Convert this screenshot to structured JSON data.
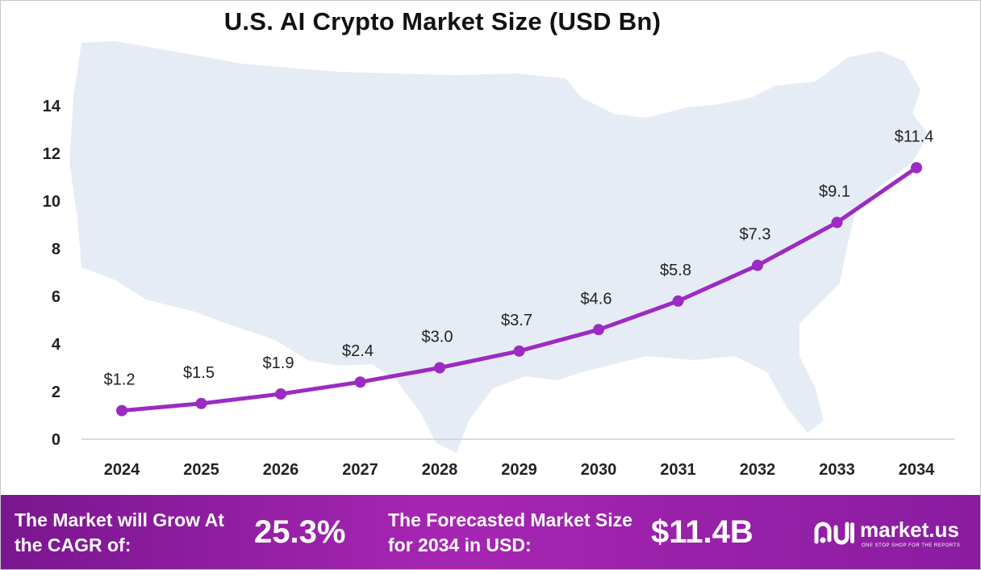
{
  "chart_data": {
    "type": "line",
    "title": "U.S. AI Crypto Market Size (USD Bn)",
    "categories": [
      "2024",
      "2025",
      "2026",
      "2027",
      "2028",
      "2029",
      "2030",
      "2031",
      "2032",
      "2033",
      "2034"
    ],
    "values": [
      1.2,
      1.5,
      1.9,
      2.4,
      3.0,
      3.7,
      4.6,
      5.8,
      7.3,
      9.1,
      11.4
    ],
    "data_labels": [
      "$1.2",
      "$1.5",
      "$1.9",
      "$2.4",
      "$3.0",
      "$3.7",
      "$4.6",
      "$5.8",
      "$7.3",
      "$9.1",
      "$11.4"
    ],
    "y_ticks": [
      "0",
      "2",
      "4",
      "6",
      "8",
      "10",
      "12",
      "14"
    ],
    "ylim": [
      0,
      14
    ],
    "xlabel": "",
    "ylabel": "",
    "grid": false,
    "line_color": "#9b2bc2",
    "background_shape": "us-map"
  },
  "footer": {
    "cagr_label": "The Market will Grow At the CAGR of:",
    "cagr_value": "25.3%",
    "forecast_label": "The Forecasted Market Size for 2034 in USD:",
    "forecast_value": "$11.4B",
    "brand_name": "market.us",
    "brand_tagline": "ONE STOP SHOP FOR THE REPORTS"
  },
  "colors": {
    "footer_start": "#7a168f",
    "footer_end": "#a626b3",
    "map_fill": "#e6ecf5"
  }
}
